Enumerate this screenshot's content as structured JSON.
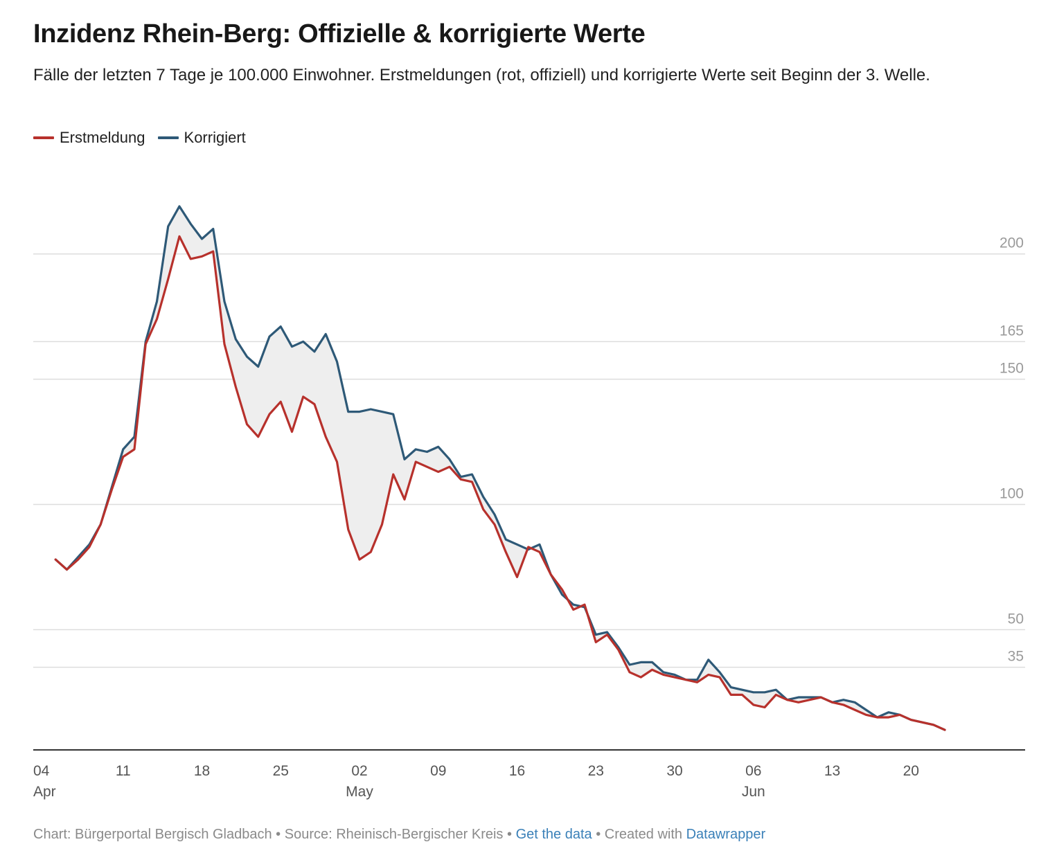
{
  "title": "Inzidenz Rhein-Berg: Offizielle & korrigierte Werte",
  "subtitle": "Fälle der letzten 7 Tage je 100.000 Einwohner. Erstmeldungen (rot, offiziell) und korrigierte Werte seit Beginn der 3. Welle.",
  "footer": {
    "chart_credit": "Chart: Bürgerportal Bergisch Gladbach",
    "sep1": " • ",
    "source": "Source: Rheinisch-Bergischer Kreis",
    "sep2": " • ",
    "get_data": "Get the data",
    "sep3": " • ",
    "created_with": "Created with ",
    "datawrapper": "Datawrapper"
  },
  "colors": {
    "erstmeldung": "#b7312c",
    "korrigiert": "#2e5977",
    "fill": "#eeeeee",
    "grid": "#dddddd",
    "tick": "#9a9a9a",
    "axis": "#333333"
  },
  "chart_data": {
    "type": "line",
    "y_ticks": [
      200,
      165,
      150,
      100,
      50,
      35
    ],
    "ylim": [
      2,
      240
    ],
    "x_ticks": [
      {
        "date": "2021-04-04",
        "label": "04",
        "month": "Apr"
      },
      {
        "date": "2021-04-11",
        "label": "11",
        "month": ""
      },
      {
        "date": "2021-04-18",
        "label": "18",
        "month": ""
      },
      {
        "date": "2021-04-25",
        "label": "25",
        "month": ""
      },
      {
        "date": "2021-05-02",
        "label": "02",
        "month": "May"
      },
      {
        "date": "2021-05-09",
        "label": "09",
        "month": ""
      },
      {
        "date": "2021-05-16",
        "label": "16",
        "month": ""
      },
      {
        "date": "2021-05-23",
        "label": "23",
        "month": ""
      },
      {
        "date": "2021-05-30",
        "label": "30",
        "month": ""
      },
      {
        "date": "2021-06-06",
        "label": "06",
        "month": "Jun"
      },
      {
        "date": "2021-06-13",
        "label": "13",
        "month": ""
      },
      {
        "date": "2021-06-20",
        "label": "20",
        "month": ""
      }
    ],
    "x_dates": [
      "2021-04-05",
      "2021-04-06",
      "2021-04-07",
      "2021-04-08",
      "2021-04-09",
      "2021-04-10",
      "2021-04-11",
      "2021-04-12",
      "2021-04-13",
      "2021-04-14",
      "2021-04-15",
      "2021-04-16",
      "2021-04-17",
      "2021-04-18",
      "2021-04-19",
      "2021-04-20",
      "2021-04-21",
      "2021-04-22",
      "2021-04-23",
      "2021-04-24",
      "2021-04-25",
      "2021-04-26",
      "2021-04-27",
      "2021-04-28",
      "2021-04-29",
      "2021-04-30",
      "2021-05-01",
      "2021-05-02",
      "2021-05-03",
      "2021-05-04",
      "2021-05-05",
      "2021-05-06",
      "2021-05-07",
      "2021-05-08",
      "2021-05-09",
      "2021-05-10",
      "2021-05-11",
      "2021-05-12",
      "2021-05-13",
      "2021-05-14",
      "2021-05-15",
      "2021-05-16",
      "2021-05-17",
      "2021-05-18",
      "2021-05-19",
      "2021-05-20",
      "2021-05-21",
      "2021-05-22",
      "2021-05-23",
      "2021-05-24",
      "2021-05-25",
      "2021-05-26",
      "2021-05-27",
      "2021-05-28",
      "2021-05-29",
      "2021-05-30",
      "2021-05-31",
      "2021-06-01",
      "2021-06-02",
      "2021-06-03",
      "2021-06-04",
      "2021-06-05",
      "2021-06-06",
      "2021-06-07",
      "2021-06-08",
      "2021-06-09",
      "2021-06-10",
      "2021-06-11",
      "2021-06-12",
      "2021-06-13",
      "2021-06-14",
      "2021-06-15",
      "2021-06-16",
      "2021-06-17",
      "2021-06-18",
      "2021-06-19",
      "2021-06-20",
      "2021-06-21",
      "2021-06-22",
      "2021-06-23"
    ],
    "series": [
      {
        "name": "Erstmeldung",
        "color": "#b7312c",
        "values": [
          78,
          74,
          78,
          83,
          92,
          106,
          119,
          122,
          164,
          174,
          190,
          207,
          198,
          199,
          201,
          164,
          147,
          132,
          127,
          136,
          141,
          129,
          143,
          140,
          127,
          117,
          90,
          78,
          81,
          92,
          112,
          102,
          117,
          115,
          113,
          115,
          110,
          109,
          98,
          92,
          81,
          71,
          83,
          81,
          72,
          66,
          58,
          60,
          45,
          48,
          42,
          33,
          31,
          34,
          32,
          31,
          30,
          29,
          32,
          31,
          24,
          24,
          20,
          19,
          24,
          22,
          21,
          22,
          23,
          21,
          20,
          18,
          16,
          15,
          15,
          16,
          14,
          13,
          12,
          10
        ]
      },
      {
        "name": "Korrigiert",
        "color": "#2e5977",
        "values": [
          78,
          74,
          79,
          84,
          92,
          107,
          122,
          127,
          165,
          181,
          211,
          219,
          212,
          206,
          210,
          181,
          166,
          159,
          155,
          167,
          171,
          163,
          165,
          161,
          168,
          157,
          137,
          137,
          138,
          137,
          136,
          118,
          122,
          121,
          123,
          118,
          111,
          112,
          103,
          96,
          86,
          84,
          82,
          84,
          72,
          64,
          60,
          59,
          48,
          49,
          43,
          36,
          37,
          37,
          33,
          32,
          30,
          30,
          38,
          33,
          27,
          26,
          25,
          25,
          26,
          22,
          23,
          23,
          23,
          21,
          22,
          21,
          18,
          15,
          17,
          16,
          14,
          13,
          12,
          10
        ]
      }
    ]
  }
}
